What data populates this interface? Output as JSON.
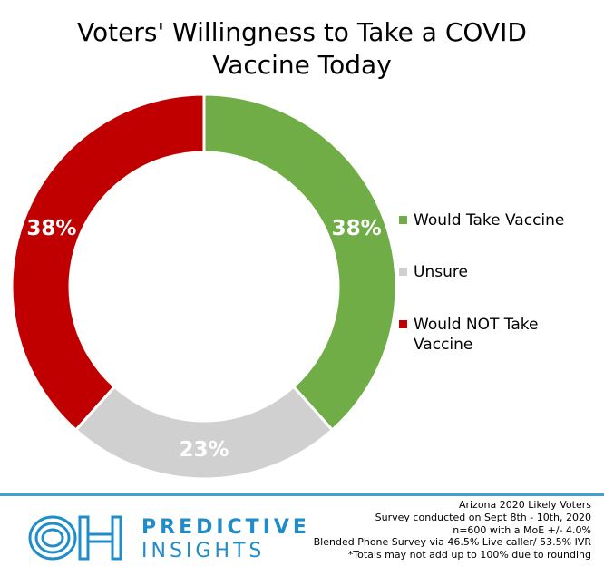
{
  "title_lines": [
    "Voters' Willingness to Take a COVID",
    "Vaccine Today"
  ],
  "chart_data": {
    "type": "pie",
    "title": "Voters' Willingness to Take a COVID Vaccine Today",
    "categories": [
      "Would Take Vaccine",
      "Unsure",
      "Would NOT Take Vaccine"
    ],
    "values": [
      38,
      23,
      38
    ],
    "value_labels": [
      "38%",
      "23%",
      "38%"
    ],
    "colors": [
      "#70ad47",
      "#d0d0d0",
      "#c00000"
    ],
    "label_colors": [
      "#ffffff",
      "#ffffff",
      "#ffffff"
    ],
    "donut": true,
    "legend_position": "right"
  },
  "legend": [
    {
      "lines": [
        "Would Take Vaccine"
      ],
      "color": "#70ad47"
    },
    {
      "lines": [
        "Unsure"
      ],
      "color": "#d0d0d0"
    },
    {
      "lines": [
        "Would NOT Take",
        "Vaccine"
      ],
      "color": "#c00000"
    }
  ],
  "footer": {
    "brand_line1": "PREDICTIVE",
    "brand_line2": "INSIGHTS",
    "notes": [
      "Arizona 2020 Likely Voters",
      "Survey conducted on Sept 8th - 10th, 2020",
      "n=600 with a MoE +/- 4.0%",
      "Blended Phone Survey via 46.5% Live caller/ 53.5% IVR",
      "*Totals may not add up to 100% due to rounding"
    ],
    "accent_color": "#3ea0d3"
  }
}
